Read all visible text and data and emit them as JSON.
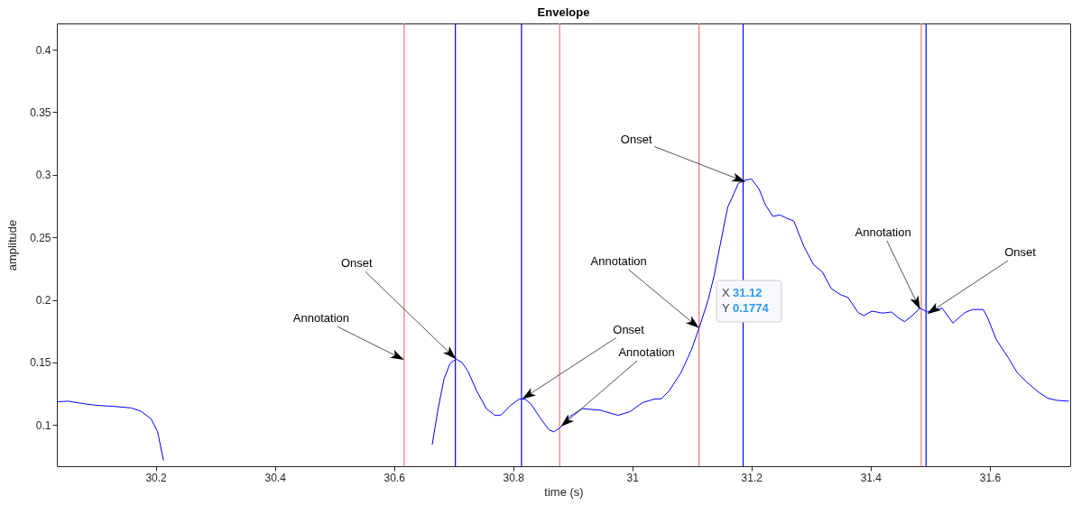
{
  "chart_data": {
    "type": "line",
    "title": "Envelope",
    "xlabel": "time (s)",
    "ylabel": "amplitude",
    "xlim": [
      30.034,
      31.735
    ],
    "ylim": [
      0.067,
      0.421
    ],
    "xticks": [
      30.2,
      30.4,
      30.6,
      30.8,
      31,
      31.2,
      31.4,
      31.6
    ],
    "yticks": [
      0.1,
      0.15,
      0.2,
      0.25,
      0.3,
      0.35,
      0.4
    ],
    "grid": false,
    "series": [
      {
        "color": "#0000ff",
        "x": [
          30.034,
          30.053,
          30.079,
          30.1,
          30.133,
          30.159,
          30.175,
          30.192,
          30.203,
          30.213,
          30.215,
          30.4,
          30.658,
          30.664,
          30.674,
          30.684,
          30.694,
          30.704,
          30.714,
          30.724,
          30.739,
          30.755,
          30.77,
          30.78,
          30.795,
          30.81,
          30.82,
          30.83,
          30.845,
          30.86,
          30.868,
          30.878,
          30.896,
          30.916,
          30.946,
          30.976,
          30.996,
          31.017,
          31.037,
          31.049,
          31.062,
          31.082,
          31.1,
          31.112,
          31.127,
          31.137,
          31.15,
          31.16,
          31.168,
          31.178,
          31.188,
          31.2,
          31.213,
          31.223,
          31.236,
          31.248,
          31.258,
          31.271,
          31.288,
          31.304,
          31.319,
          31.334,
          31.349,
          31.362,
          31.379,
          31.389,
          31.402,
          31.42,
          31.435,
          31.447,
          31.457,
          31.47,
          31.483,
          31.495,
          31.508,
          31.52,
          31.538,
          31.558,
          31.571,
          31.589,
          31.596,
          31.611,
          31.631,
          31.646,
          31.661,
          31.682,
          31.697,
          31.712,
          31.733
        ],
        "values": [
          0.1185,
          0.119,
          0.117,
          0.1157,
          0.1147,
          0.1136,
          0.111,
          0.105,
          0.0948,
          0.0717,
          null,
          null,
          null,
          0.0842,
          0.113,
          0.137,
          0.149,
          0.1527,
          0.15,
          0.143,
          0.127,
          0.113,
          0.1075,
          0.108,
          0.1154,
          0.1207,
          0.1207,
          0.1166,
          0.1058,
          0.0962,
          0.0945,
          0.0974,
          0.107,
          0.113,
          0.1118,
          0.1077,
          0.1106,
          0.1178,
          0.1207,
          0.121,
          0.1274,
          0.142,
          0.161,
          0.1774,
          0.1995,
          0.2187,
          0.25,
          0.274,
          0.2823,
          0.2931,
          0.2955,
          0.2967,
          0.2883,
          0.2763,
          0.2667,
          0.2679,
          0.2655,
          0.2631,
          0.2427,
          0.2283,
          0.2223,
          0.209,
          0.2043,
          0.2019,
          0.1898,
          0.1875,
          0.191,
          0.1894,
          0.1903,
          0.1855,
          0.1826,
          0.1875,
          0.1934,
          0.1903,
          0.1923,
          0.1934,
          0.1815,
          0.1898,
          0.1923,
          0.1923,
          0.1862,
          0.1682,
          0.1538,
          0.1419,
          0.1347,
          0.1262,
          0.1214,
          0.1197,
          0.119
        ]
      }
    ],
    "ref_lines": [
      {
        "axis": "x",
        "value": 30.617,
        "color": "#f07878"
      },
      {
        "axis": "x",
        "value": 30.878,
        "color": "#f07878"
      },
      {
        "axis": "x",
        "value": 31.112,
        "color": "#f07878"
      },
      {
        "axis": "x",
        "value": 31.485,
        "color": "#f07878"
      },
      {
        "axis": "x",
        "value": 30.703,
        "color": "#0000ff"
      },
      {
        "axis": "x",
        "value": 30.814,
        "color": "#0000ff"
      },
      {
        "axis": "x",
        "value": 31.186,
        "color": "#0000ff"
      },
      {
        "axis": "x",
        "value": 31.493,
        "color": "#0000ff"
      }
    ],
    "annotations": [
      {
        "text": "Annotation",
        "x": 30.617,
        "y": 0.152
      },
      {
        "text": "Onset",
        "x": 30.704,
        "y": 0.1527
      },
      {
        "text": "Onset",
        "x": 30.815,
        "y": 0.1207
      },
      {
        "text": "Annotation",
        "x": 30.88,
        "y": 0.0987
      },
      {
        "text": "Annotation",
        "x": 31.112,
        "y": 0.1774
      },
      {
        "text": "Onset",
        "x": 31.19,
        "y": 0.2943
      },
      {
        "text": "Annotation",
        "x": 31.483,
        "y": 0.1923
      },
      {
        "text": "Onset",
        "x": 31.495,
        "y": 0.1887
      },
      "X 31.12",
      "Y 0.1774"
    ]
  }
}
